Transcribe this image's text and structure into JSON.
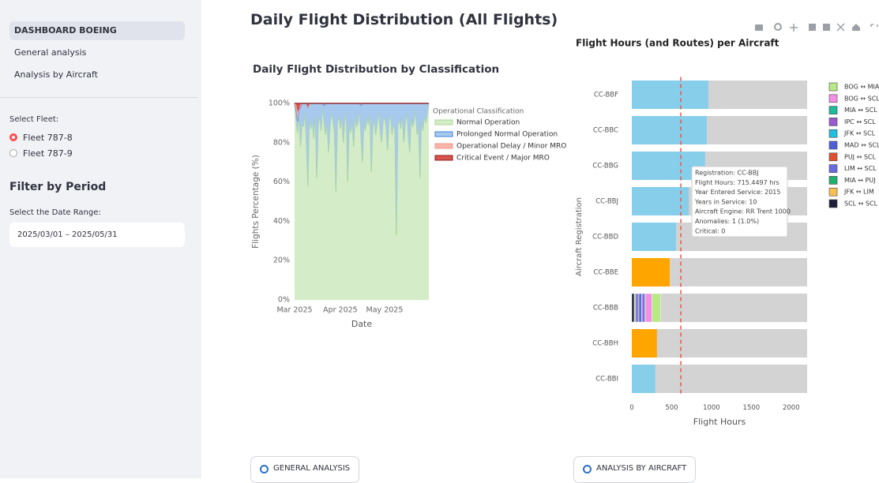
{
  "sidebar": {
    "nav": [
      "DASHBOARD BOEING",
      "General analysis",
      "Analysis by Aircraft"
    ],
    "selected_nav": 0,
    "fleet_label": "Select Fleet:",
    "fleets": [
      "Fleet 787-8",
      "Fleet 787-9"
    ],
    "selected_fleet": 0,
    "period_title": "Filter by Period",
    "date_label": "Select the Date Range:",
    "date_range": "2025/03/01 – 2025/05/31"
  },
  "page_title": "Daily Flight Distribution (All Flights)",
  "buttons": [
    "GENERAL ANALYSIS",
    "ANALYSIS BY AIRCRAFT"
  ],
  "chart_data": [
    {
      "type": "area",
      "stacked": true,
      "title": "Daily Flight Distribution by Classification",
      "xlabel": "Date",
      "ylabel": "Flights Percentage (%)",
      "legend_title": "Operational Classification",
      "categories": [
        "Mar 2025",
        null,
        null,
        null,
        null,
        null,
        null,
        null,
        null,
        null,
        null,
        null,
        null,
        null,
        null,
        null,
        null,
        null,
        null,
        null,
        null,
        null,
        null,
        null,
        null,
        null,
        null,
        null,
        null,
        null,
        null,
        "Apr 2025",
        null,
        null,
        null,
        null,
        null,
        null,
        null,
        null,
        null,
        null,
        null,
        null,
        null,
        null,
        null,
        null,
        null,
        null,
        null,
        null,
        null,
        null,
        null,
        null,
        null,
        null,
        null,
        null,
        null,
        "May 2025",
        null,
        null,
        null,
        null,
        null,
        null,
        null,
        null,
        null,
        null,
        null,
        null,
        null,
        null,
        null,
        null,
        null,
        null,
        null,
        null,
        null,
        null,
        null,
        null,
        null,
        null,
        null,
        null,
        null,
        null
      ],
      "ylim": [
        0,
        100
      ],
      "yticks": [
        {
          "value": 0,
          "label": "0%"
        },
        {
          "value": 20,
          "label": "20%"
        },
        {
          "value": 40,
          "label": "40%"
        },
        {
          "value": 60,
          "label": "60%"
        },
        {
          "value": 80,
          "label": "80%"
        },
        {
          "value": 100,
          "label": "100%"
        }
      ],
      "grid": true,
      "series": [
        {
          "name": "Normal Operation",
          "color": "#a9d796",
          "fill": "#d5ecc9",
          "values": [
            100,
            92,
            85,
            95,
            78,
            90,
            88,
            96,
            80,
            58,
            93,
            87,
            91,
            82,
            97,
            62,
            89,
            94,
            86,
            99,
            90,
            84,
            92,
            75,
            88,
            96,
            91,
            85,
            55,
            90,
            94,
            87,
            93,
            80,
            91,
            96,
            60,
            89,
            85,
            92,
            78,
            94,
            88,
            90,
            97,
            83,
            70,
            91,
            86,
            93,
            89,
            95,
            65,
            88,
            92,
            84,
            90,
            96,
            86,
            80,
            91,
            93,
            88,
            76,
            91,
            95,
            84,
            90,
            86,
            33,
            89,
            92,
            87,
            94,
            80,
            90,
            96,
            85,
            75,
            93,
            88,
            91,
            97,
            84,
            89,
            62,
            92,
            86,
            94,
            90,
            95,
            100
          ]
        },
        {
          "name": "Prolonged Normal Operation",
          "color": "#3d7fd9",
          "fill": "#a8c9ee",
          "values": [
            0,
            5,
            6,
            2,
            20,
            10,
            12,
            4,
            20,
            40,
            7,
            13,
            9,
            18,
            3,
            38,
            11,
            6,
            14,
            1,
            9,
            16,
            8,
            25,
            12,
            4,
            9,
            15,
            45,
            10,
            6,
            13,
            7,
            20,
            9,
            4,
            40,
            11,
            15,
            8,
            22,
            6,
            12,
            10,
            3,
            16,
            30,
            9,
            14,
            7,
            11,
            5,
            35,
            12,
            8,
            16,
            10,
            4,
            14,
            20,
            9,
            7,
            12,
            24,
            9,
            5,
            16,
            10,
            14,
            67,
            11,
            8,
            13,
            6,
            20,
            10,
            4,
            15,
            25,
            7,
            12,
            9,
            3,
            16,
            11,
            38,
            8,
            14,
            6,
            10,
            5,
            0
          ]
        },
        {
          "name": "Operational Delay / Minor MRO",
          "color": "#f29a8c",
          "fill": "#f7b5aa",
          "values": [
            0,
            3,
            5,
            0,
            2,
            0,
            0,
            0,
            0,
            0,
            0,
            0,
            0,
            0,
            0,
            0,
            0,
            0,
            0,
            0,
            1,
            0,
            0,
            0,
            0,
            0,
            0,
            0,
            0,
            0,
            0,
            0,
            0,
            0,
            0,
            0,
            0,
            0,
            0,
            0,
            0,
            0,
            0,
            0,
            0,
            1,
            0,
            0,
            0,
            0,
            0,
            0,
            0,
            0,
            0,
            0,
            0,
            0,
            0,
            0,
            0,
            0,
            0,
            0,
            0,
            0,
            0,
            0,
            0,
            0,
            0,
            0,
            0,
            0,
            0,
            0,
            0,
            0,
            0,
            0,
            0,
            0,
            0,
            0,
            0,
            0,
            0,
            0,
            0,
            0,
            0,
            0
          ]
        },
        {
          "name": "Critical Event / Major MRO",
          "color": "#8b1a1a",
          "fill": "#d9534f",
          "values": [
            0,
            0,
            4,
            3,
            0,
            0,
            0,
            0,
            0,
            2,
            0,
            0,
            0,
            0,
            0,
            0,
            0,
            0,
            0,
            0,
            0,
            0,
            0,
            0,
            0,
            0,
            0,
            0,
            0,
            0,
            0,
            0,
            0,
            0,
            0,
            0,
            0,
            0,
            0,
            0,
            0,
            0,
            0,
            0,
            0,
            0,
            0,
            0,
            0,
            0,
            0,
            0,
            0,
            0,
            0,
            0,
            0,
            0,
            0,
            0,
            0,
            0,
            0,
            0,
            0,
            0,
            0,
            0,
            0,
            0,
            0,
            0,
            0,
            0,
            0,
            0,
            0,
            0,
            0,
            0,
            0,
            0,
            0,
            0,
            0,
            0,
            0,
            0,
            0,
            0,
            0,
            0
          ]
        }
      ]
    },
    {
      "type": "barh",
      "title": "Flight Hours (and Routes) per Aircraft",
      "xlabel": "Flight Hours",
      "ylabel": "Aircraft Registration",
      "categories": [
        "CC-BBF",
        "CC-BBC",
        "CC-BBG",
        "CC-BBJ",
        "CC-BBD",
        "CC-BBE",
        "CC-BBB",
        "CC-BBH",
        "CC-BBI"
      ],
      "values": [
        960,
        940,
        920,
        715.4497,
        555,
        475,
        null,
        315,
        295
      ],
      "colors": [
        "#87ceeb",
        "#87ceeb",
        "#87ceeb",
        "#87ceeb",
        "#87ceeb",
        "#ffa500",
        null,
        "#ffa500",
        "#87ceeb"
      ],
      "track_color": "#d3d3d3",
      "xlim": [
        0,
        2200
      ],
      "xticks": [
        0,
        500,
        1000,
        1500,
        2000
      ],
      "mean_line": {
        "value": 615,
        "color": "#e05a4f"
      },
      "series": [
        {
          "name": "BOG ↔ MIA",
          "color": "#b8e986",
          "values": [
            null,
            null,
            null,
            null,
            null,
            null,
            110,
            null,
            null
          ]
        },
        {
          "name": "BOG ↔ SCL",
          "color": "#f48fe8",
          "values": [
            null,
            null,
            null,
            null,
            null,
            null,
            80,
            null,
            null
          ]
        },
        {
          "name": "MIA ↔ SCL",
          "color": "#1abc9c",
          "values": [
            null,
            null,
            null,
            null,
            null,
            null,
            10,
            null,
            null
          ]
        },
        {
          "name": "IPC ↔ SCL",
          "color": "#9b59d0",
          "values": [
            null,
            null,
            null,
            null,
            null,
            null,
            30,
            null,
            null
          ]
        },
        {
          "name": "JFK ↔ SCL",
          "color": "#20c0e0",
          "values": [
            null,
            null,
            null,
            null,
            null,
            null,
            10,
            null,
            null
          ]
        },
        {
          "name": "MAD ↔ SCL",
          "color": "#4f5fd8",
          "values": [
            null,
            null,
            null,
            null,
            null,
            null,
            30,
            null,
            null
          ]
        },
        {
          "name": "PUJ ↔ SCL",
          "color": "#e05030",
          "values": [
            null,
            null,
            null,
            null,
            null,
            null,
            10,
            null,
            null
          ]
        },
        {
          "name": "LIM ↔ SCL",
          "color": "#6a6ae0",
          "values": [
            null,
            null,
            null,
            null,
            null,
            null,
            30,
            null,
            null
          ]
        },
        {
          "name": "MIA ↔ PUJ",
          "color": "#20b070",
          "values": [
            null,
            null,
            null,
            null,
            null,
            null,
            10,
            null,
            null
          ]
        },
        {
          "name": "JFK ↔ LIM",
          "color": "#f8c050",
          "values": [
            null,
            null,
            null,
            null,
            null,
            null,
            10,
            null,
            null
          ]
        },
        {
          "name": "SCL ↔ SCL",
          "color": "#1f1f3a",
          "values": [
            null,
            null,
            null,
            null,
            null,
            null,
            30,
            null,
            null
          ]
        }
      ],
      "tooltip": [
        "Registration: CC-BBJ",
        "Flight Hours: 715.4497 hrs",
        "Year Entered Service: 2015",
        "Years in Service: 10",
        "Aircraft Engine: RR Trent 1000",
        "Anomalies: 1 (1.0%)",
        "Critical: 0"
      ]
    }
  ]
}
